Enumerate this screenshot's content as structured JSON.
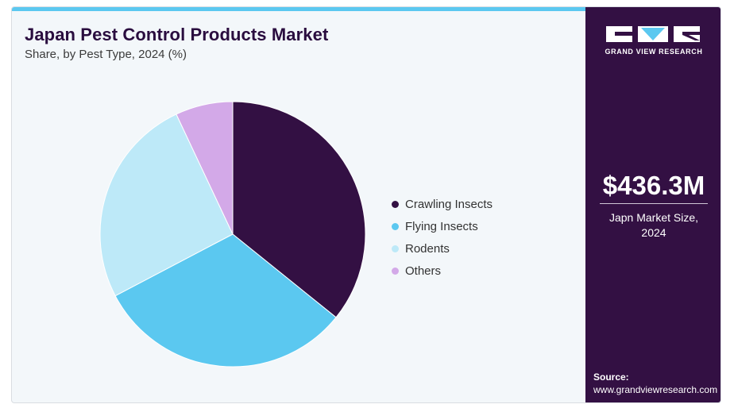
{
  "header": {
    "title": "Japan Pest Control Products Market",
    "subtitle": "Share, by Pest Type, 2024 (%)"
  },
  "chart_data": {
    "type": "pie",
    "title": "Japan Pest Control Products Market",
    "subtitle": "Share, by Pest Type, 2024 (%)",
    "categories": [
      "Crawling Insects",
      "Flying Insects",
      "Rodents",
      "Others"
    ],
    "values": [
      35.8,
      31.5,
      25.7,
      7.0
    ],
    "colors": [
      "#331043",
      "#5bc8f0",
      "#bde9f8",
      "#d3a9e8"
    ],
    "start_angle_deg": 0,
    "direction": "clockwise",
    "legend_position": "right"
  },
  "sidebar": {
    "brand": "GRAND VIEW RESEARCH",
    "market_size": "$436.3M",
    "market_size_label": "Japn Market Size, 2024",
    "source_label": "Source:",
    "source_url": "www.grandviewresearch.com",
    "logo_colors": {
      "mark": "#ffffff",
      "accent": "#5bc8f0"
    }
  }
}
